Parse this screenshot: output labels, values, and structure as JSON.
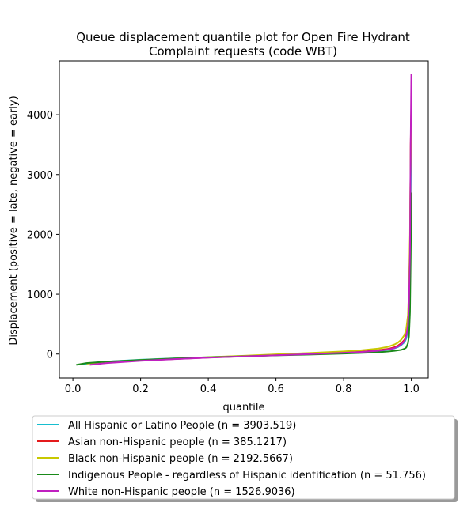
{
  "chart_data": {
    "type": "line",
    "title_lines": [
      "Queue displacement quantile plot for Open Fire Hydrant",
      "Complaint  requests (code WBT)"
    ],
    "xlabel": "quantile",
    "ylabel": "Displacement (positive = late, negative = early)",
    "xlim": [
      -0.04,
      1.05
    ],
    "ylim": [
      -400,
      4900
    ],
    "xticks": [
      0.0,
      0.2,
      0.4,
      0.6,
      0.8,
      1.0
    ],
    "xtick_labels": [
      "0.0",
      "0.2",
      "0.4",
      "0.6",
      "0.8",
      "1.0"
    ],
    "yticks": [
      0,
      1000,
      2000,
      3000,
      4000
    ],
    "ytick_labels": [
      "0",
      "1000",
      "2000",
      "3000",
      "4000"
    ],
    "grid": false,
    "legend_position": "below-plot",
    "series": [
      {
        "name": "All Hispanic or Latino People (n = 3903.519)",
        "color": "#17becf",
        "points": [
          [
            0.03,
            -170
          ],
          [
            0.06,
            -145
          ],
          [
            0.1,
            -125
          ],
          [
            0.2,
            -95
          ],
          [
            0.3,
            -72
          ],
          [
            0.4,
            -52
          ],
          [
            0.5,
            -35
          ],
          [
            0.6,
            -18
          ],
          [
            0.7,
            0
          ],
          [
            0.8,
            20
          ],
          [
            0.85,
            32
          ],
          [
            0.9,
            50
          ],
          [
            0.93,
            70
          ],
          [
            0.95,
            95
          ],
          [
            0.96,
            115
          ],
          [
            0.97,
            150
          ],
          [
            0.98,
            200
          ],
          [
            0.985,
            260
          ],
          [
            0.99,
            420
          ],
          [
            0.993,
            700
          ],
          [
            0.996,
            1300
          ],
          [
            0.998,
            2600
          ],
          [
            1.0,
            4300
          ]
        ]
      },
      {
        "name": "Asian non-Hispanic people (n = 385.1217)",
        "color": "#e41a1c",
        "points": [
          [
            0.06,
            -175
          ],
          [
            0.1,
            -145
          ],
          [
            0.2,
            -108
          ],
          [
            0.3,
            -82
          ],
          [
            0.4,
            -58
          ],
          [
            0.5,
            -38
          ],
          [
            0.6,
            -18
          ],
          [
            0.7,
            2
          ],
          [
            0.8,
            25
          ],
          [
            0.85,
            40
          ],
          [
            0.9,
            62
          ],
          [
            0.93,
            85
          ],
          [
            0.95,
            115
          ],
          [
            0.96,
            140
          ],
          [
            0.97,
            180
          ],
          [
            0.98,
            240
          ],
          [
            0.985,
            320
          ],
          [
            0.99,
            500
          ],
          [
            0.993,
            900
          ],
          [
            0.996,
            1800
          ],
          [
            0.998,
            3500
          ],
          [
            1.0,
            4100
          ]
        ]
      },
      {
        "name": "Black non-Hispanic people (n = 2192.5667)",
        "color": "#c8c800",
        "points": [
          [
            0.04,
            -160
          ],
          [
            0.1,
            -130
          ],
          [
            0.2,
            -100
          ],
          [
            0.3,
            -75
          ],
          [
            0.4,
            -52
          ],
          [
            0.5,
            -30
          ],
          [
            0.6,
            -5
          ],
          [
            0.7,
            18
          ],
          [
            0.8,
            45
          ],
          [
            0.85,
            62
          ],
          [
            0.9,
            90
          ],
          [
            0.93,
            120
          ],
          [
            0.95,
            160
          ],
          [
            0.96,
            190
          ],
          [
            0.97,
            240
          ],
          [
            0.98,
            320
          ],
          [
            0.985,
            420
          ],
          [
            0.99,
            650
          ],
          [
            0.993,
            1100
          ],
          [
            0.996,
            2000
          ],
          [
            0.998,
            3300
          ],
          [
            1.0,
            4200
          ]
        ]
      },
      {
        "name": "Indigenous People - regardless of Hispanic identification (n = 51.756)",
        "color": "#1a8a1a",
        "points": [
          [
            0.01,
            -180
          ],
          [
            0.04,
            -150
          ],
          [
            0.1,
            -125
          ],
          [
            0.2,
            -100
          ],
          [
            0.3,
            -75
          ],
          [
            0.4,
            -55
          ],
          [
            0.5,
            -38
          ],
          [
            0.6,
            -22
          ],
          [
            0.7,
            -8
          ],
          [
            0.8,
            8
          ],
          [
            0.85,
            18
          ],
          [
            0.9,
            30
          ],
          [
            0.93,
            42
          ],
          [
            0.95,
            55
          ],
          [
            0.97,
            70
          ],
          [
            0.98,
            90
          ],
          [
            0.985,
            110
          ],
          [
            0.99,
            180
          ],
          [
            0.993,
            300
          ],
          [
            0.996,
            700
          ],
          [
            0.998,
            1600
          ],
          [
            1.0,
            2700
          ]
        ]
      },
      {
        "name": "White non-Hispanic people (n = 1526.9036)",
        "color": "#c020c0",
        "points": [
          [
            0.05,
            -180
          ],
          [
            0.1,
            -150
          ],
          [
            0.2,
            -112
          ],
          [
            0.3,
            -85
          ],
          [
            0.4,
            -60
          ],
          [
            0.5,
            -40
          ],
          [
            0.6,
            -20
          ],
          [
            0.7,
            0
          ],
          [
            0.8,
            22
          ],
          [
            0.85,
            35
          ],
          [
            0.9,
            55
          ],
          [
            0.93,
            75
          ],
          [
            0.95,
            100
          ],
          [
            0.96,
            125
          ],
          [
            0.97,
            160
          ],
          [
            0.98,
            220
          ],
          [
            0.985,
            300
          ],
          [
            0.99,
            480
          ],
          [
            0.993,
            850
          ],
          [
            0.996,
            1700
          ],
          [
            0.998,
            3500
          ],
          [
            1.0,
            4680
          ]
        ]
      }
    ]
  }
}
